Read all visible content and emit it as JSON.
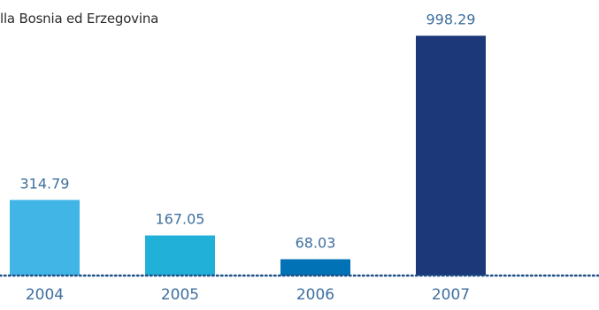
{
  "chart_data": {
    "type": "bar",
    "title": "lla Bosnia ed Erzegovina",
    "categories": [
      "2004",
      "2005",
      "2006",
      "2007"
    ],
    "values": [
      314.79,
      167.05,
      68.03,
      998.29
    ],
    "value_labels": [
      "314.79",
      "167.05",
      "68.03",
      "998.29"
    ],
    "ylim": [
      0,
      1000
    ],
    "grid": false,
    "baseline_style": "dotted",
    "colors": [
      "#41b6e6",
      "#21b0d8",
      "#0072b5",
      "#1c3879"
    ],
    "label_color": "#3f6f9f",
    "baseline_color": "#1d4f86"
  }
}
